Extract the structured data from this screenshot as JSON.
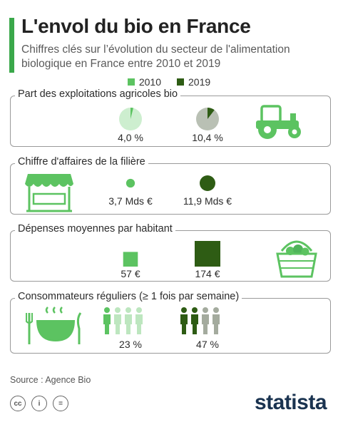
{
  "header": {
    "title": "L'envol du bio en France",
    "subtitle": "Chiffres clés sur l’évolution du secteur de l'alimentation biologique en France entre 2010 et 2019"
  },
  "legend": [
    {
      "label": "2010",
      "color": "#5cc361"
    },
    {
      "label": "2019",
      "color": "#2e5c14"
    }
  ],
  "sections": {
    "farms": {
      "label": "Part des exploitations agricoles bio",
      "v2010": "4,0 %",
      "v2019": "10,4 %",
      "icon": "tractor-icon"
    },
    "revenue": {
      "label": "Chiffre d'affaires de la filière",
      "v2010": "3,7 Mds €",
      "v2019": "11,9 Mds €",
      "icon": "market-stall-icon"
    },
    "spending": {
      "label": "Dépenses moyennes par habitant",
      "v2010": "57 €",
      "v2019": "174 €",
      "icon": "vegetable-basket-icon"
    },
    "consumers": {
      "label": "Consommateurs réguliers (≥ 1 fois par semaine)",
      "v2010": "23 %",
      "v2019": "47 %",
      "icon": "meal-icon"
    }
  },
  "footer": {
    "source": "Source : Agence Bio",
    "license_icons": [
      "cc-icon",
      "by-icon",
      "nd-icon"
    ],
    "brand": "statista"
  },
  "chart_data": [
    {
      "type": "pie",
      "title": "Part des exploitations agricoles bio",
      "unit": "%",
      "categories": [
        "2010",
        "2019"
      ],
      "values": [
        4.0,
        10.4
      ]
    },
    {
      "type": "bar",
      "title": "Chiffre d'affaires de la filière",
      "unit": "Mds €",
      "categories": [
        "2010",
        "2019"
      ],
      "values": [
        3.7,
        11.9
      ]
    },
    {
      "type": "bar",
      "title": "Dépenses moyennes par habitant",
      "unit": "€",
      "categories": [
        "2010",
        "2019"
      ],
      "values": [
        57,
        174
      ]
    },
    {
      "type": "bar",
      "title": "Consommateurs réguliers (≥ 1 fois par semaine)",
      "unit": "%",
      "categories": [
        "2010",
        "2019"
      ],
      "values": [
        23,
        47
      ]
    }
  ]
}
